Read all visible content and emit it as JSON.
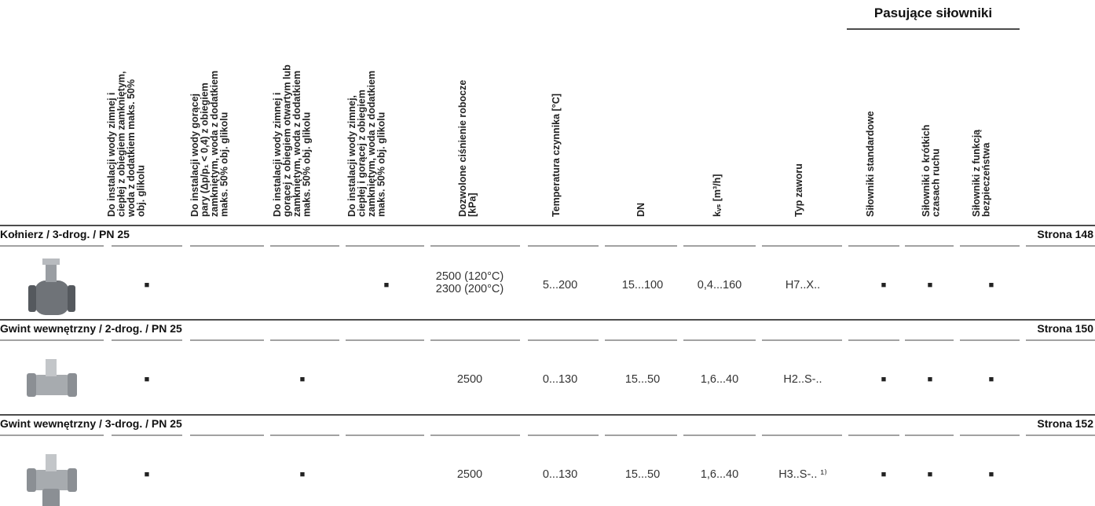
{
  "group_header": "Pasujące siłowniki",
  "columns": [
    {
      "lines": [
        "Do instalacji wody zimnej i",
        "ciepłej z obiegiem zamkniętym,",
        "woda z dodatkiem maks. 50%",
        "obj. glikolu"
      ]
    },
    {
      "lines": [
        "Do instalacji wody gorącej",
        "pary (Δp/p₁ < 0,4) z obiegiem",
        "zamkniętym, woda z dodatkiem",
        "maks. 50% obj. glikolu"
      ]
    },
    {
      "lines": [
        "Do instalacji wody zimnej i",
        "gorącej z obiegiem otwartym lub",
        "zamkniętym, woda z dodatkiem",
        "maks. 50% obj. glikolu"
      ]
    },
    {
      "lines": [
        "Do instalacji wody zimnej,",
        "ciepłej i gorącej z obiegiem",
        "zamkniętym, woda z dodatkiem",
        "maks. 50% obj. glikolu"
      ]
    },
    {
      "lines": [
        "Dozwolone ciśnienie robocze",
        "[kPa]"
      ]
    },
    {
      "lines": [
        "Temperatura czynnika [°C]"
      ]
    },
    {
      "lines": [
        "DN"
      ]
    },
    {
      "lines": [
        "kᵥₛ [m³/h]"
      ]
    },
    {
      "lines": [
        "Typ zaworu"
      ]
    },
    {
      "lines": [
        "Siłowniki standardowe"
      ]
    },
    {
      "lines": [
        "Siłowniki o krótkich",
        "czasach ruchu"
      ]
    },
    {
      "lines": [
        "Siłowniki z funkcją",
        "bezpieczeństwa"
      ]
    }
  ],
  "rows": [
    {
      "section": "Kołnierz / 3-drog. / PN 25",
      "page": "Strona 148",
      "cells": [
        "■",
        null,
        null,
        "■",
        [
          "2500 (120°C)",
          "2300 (200°C)"
        ],
        "5...200",
        "15...100",
        "0,4...160",
        "H7..X..",
        "■",
        "■",
        "■"
      ]
    },
    {
      "section": "Gwint wewnętrzny / 2-drog. / PN 25",
      "page": "Strona 150",
      "cells": [
        "■",
        null,
        "■",
        null,
        "2500",
        "0...130",
        "15...50",
        "1,6...40",
        "H2..S-..",
        "■",
        "■",
        "■"
      ]
    },
    {
      "section": "Gwint wewnętrzny / 3-drog. / PN 25",
      "page": "Strona 152",
      "cells": [
        "■",
        null,
        "■",
        null,
        "2500",
        "0...130",
        "15...50",
        "1,6...40",
        "H3..S-.. ¹⁾",
        "■",
        "■",
        "■"
      ]
    }
  ]
}
